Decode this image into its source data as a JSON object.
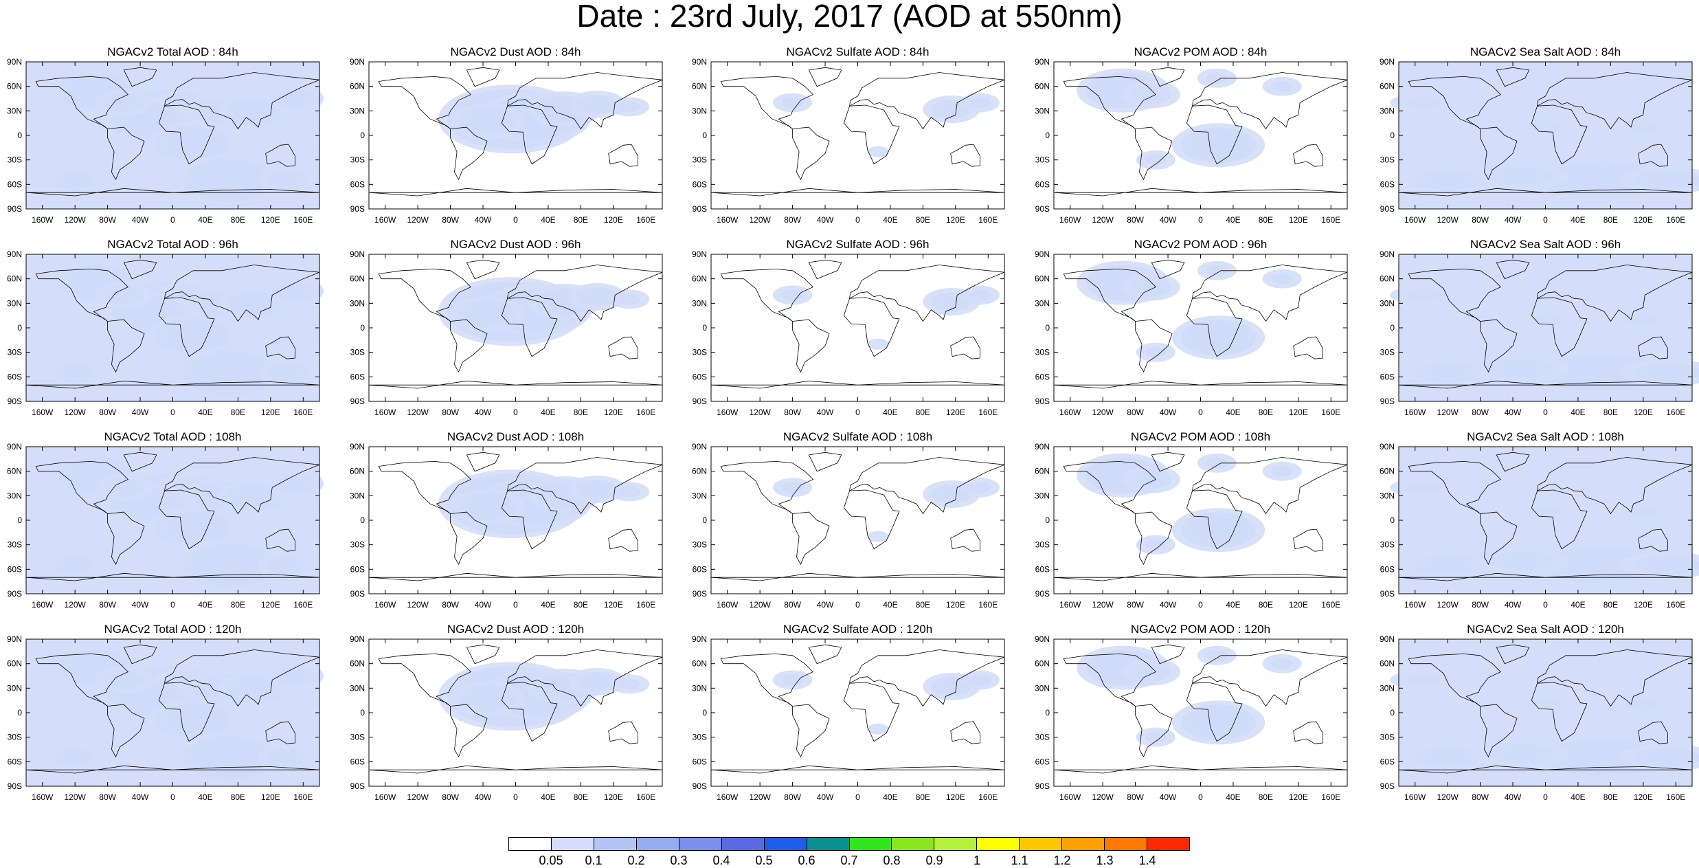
{
  "title": "Date : 23rd July, 2017 (AOD at 550nm)",
  "panel_titles": [
    [
      "NGACv2 Total AOD : 84h",
      "NGACv2 Dust AOD : 84h",
      "NGACv2 Sulfate AOD : 84h",
      "NGACv2 POM AOD : 84h",
      "NGACv2 Sea Salt AOD : 84h"
    ],
    [
      "NGACv2 Total AOD : 96h",
      "NGACv2 Dust AOD : 96h",
      "NGACv2 Sulfate AOD : 96h",
      "NGACv2 POM AOD : 96h",
      "NGACv2 Sea Salt AOD : 96h"
    ],
    [
      "NGACv2 Total AOD : 108h",
      "NGACv2 Dust AOD : 108h",
      "NGACv2 Sulfate AOD : 108h",
      "NGACv2 POM AOD : 108h",
      "NGACv2 Sea Salt AOD : 108h"
    ],
    [
      "NGACv2 Total AOD : 120h",
      "NGACv2 Dust AOD : 120h",
      "NGACv2 Sulfate AOD : 120h",
      "NGACv2 POM AOD : 120h",
      "NGACv2 Sea Salt  AOD : 120h"
    ]
  ],
  "lat_labels": [
    "90N",
    "60N",
    "30N",
    "0",
    "30S",
    "60S",
    "90S"
  ],
  "lon_labels": [
    "160W",
    "120W",
    "80W",
    "40W",
    "0",
    "40E",
    "80E",
    "120E",
    "160E"
  ],
  "lon_values": [
    -160,
    -120,
    -80,
    -40,
    0,
    40,
    80,
    120,
    160
  ],
  "lat_values": [
    90,
    60,
    30,
    0,
    -30,
    -60,
    -90
  ],
  "colorbar": {
    "labels": [
      "0.05",
      "0.1",
      "0.2",
      "0.3",
      "0.4",
      "0.5",
      "0.6",
      "0.7",
      "0.8",
      "0.9",
      "1",
      "1.1",
      "1.2",
      "1.3",
      "1.4"
    ],
    "colors": [
      "#ffffff",
      "#d4defa",
      "#b3c4f5",
      "#96acf0",
      "#7a90ea",
      "#5a6ae0",
      "#1e5ee8",
      "#0a8f8f",
      "#32e61e",
      "#8ce61e",
      "#b4f03c",
      "#ffff00",
      "#ffc800",
      "#ffa000",
      "#ff7800",
      "#ff2800"
    ]
  },
  "fields": {
    "total": [
      {
        "lon": -5,
        "lat": 20,
        "level": 8
      },
      {
        "lon": 30,
        "lat": 25,
        "level": 6
      },
      {
        "lon": -30,
        "lat": 18,
        "level": 5
      },
      {
        "lon": 60,
        "lat": 30,
        "level": 4
      },
      {
        "lon": 100,
        "lat": 28,
        "level": 4
      },
      {
        "lon": 25,
        "lat": -10,
        "level": 5
      },
      {
        "lon": -95,
        "lat": 55,
        "level": 5
      },
      {
        "lon": 70,
        "lat": -55,
        "level": 6
      },
      {
        "lon": -120,
        "lat": -55,
        "level": 3
      },
      {
        "lon": 140,
        "lat": -55,
        "level": 3
      },
      {
        "lon": -60,
        "lat": 40,
        "level": 3
      },
      {
        "lon": 150,
        "lat": 45,
        "level": 3
      }
    ],
    "dust": [
      {
        "lon": -5,
        "lat": 20,
        "level": 8
      },
      {
        "lon": 25,
        "lat": 22,
        "level": 6
      },
      {
        "lon": -35,
        "lat": 17,
        "level": 4
      },
      {
        "lon": 60,
        "lat": 32,
        "level": 4
      },
      {
        "lon": 100,
        "lat": 38,
        "level": 3
      },
      {
        "lon": 140,
        "lat": 35,
        "level": 2
      }
    ],
    "sulfate": [
      {
        "lon": 115,
        "lat": 32,
        "level": 3
      },
      {
        "lon": 150,
        "lat": 40,
        "level": 2
      },
      {
        "lon": -80,
        "lat": 40,
        "level": 2
      },
      {
        "lon": 25,
        "lat": -20,
        "level": 1
      }
    ],
    "pom": [
      {
        "lon": 22,
        "lat": -12,
        "level": 5
      },
      {
        "lon": -95,
        "lat": 55,
        "level": 5
      },
      {
        "lon": -60,
        "lat": 50,
        "level": 3
      },
      {
        "lon": 20,
        "lat": 70,
        "level": 2
      },
      {
        "lon": 100,
        "lat": 60,
        "level": 2
      },
      {
        "lon": -55,
        "lat": -30,
        "level": 2
      }
    ],
    "seasalt": [
      {
        "lon": -120,
        "lat": -55,
        "level": 3
      },
      {
        "lon": 70,
        "lat": -55,
        "level": 5
      },
      {
        "lon": 150,
        "lat": -55,
        "level": 3
      },
      {
        "lon": -30,
        "lat": -50,
        "level": 3
      },
      {
        "lon": -150,
        "lat": 40,
        "level": 2
      },
      {
        "lon": 0,
        "lat": 10,
        "level": 2
      },
      {
        "lon": 120,
        "lat": 10,
        "level": 2
      }
    ]
  }
}
